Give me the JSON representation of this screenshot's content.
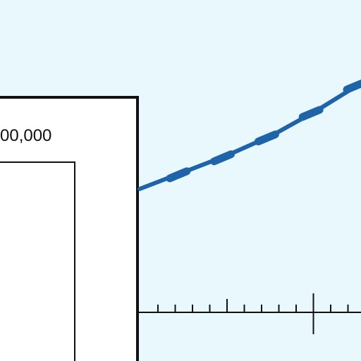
{
  "chart_data": {
    "type": "line",
    "y_label_fragment": "00,000",
    "series": [
      {
        "color": "#1f63a8",
        "points": [
          {
            "x": 0,
            "y": 0
          },
          {
            "x": 1,
            "y": 1.8
          },
          {
            "x": 2,
            "y": 3.6
          },
          {
            "x": 3,
            "y": 5.7
          },
          {
            "x": 4,
            "y": 8.3
          },
          {
            "x": 5,
            "y": 11.2
          }
        ]
      }
    ],
    "x_minor_ticks": 12,
    "x_major_tick_every": 5
  },
  "colors": {
    "background": "#e8f8fc",
    "axis": "#111111",
    "panel_fill": "#ffffff",
    "line": "#1f63a8"
  }
}
